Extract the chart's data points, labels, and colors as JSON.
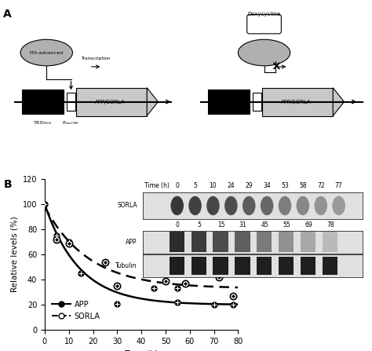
{
  "app_data_x": [
    0,
    5,
    10,
    15,
    30,
    30,
    45,
    55,
    55,
    70,
    78
  ],
  "app_data_y": [
    100,
    75,
    70,
    45,
    35,
    21,
    33,
    33,
    22,
    20,
    20
  ],
  "sorla_data_x": [
    5,
    10,
    25,
    30,
    50,
    58,
    72,
    78
  ],
  "sorla_data_y": [
    72,
    69,
    54,
    35,
    39,
    37,
    42,
    27
  ],
  "app_curve_params": {
    "a": 80,
    "b": 20,
    "k": 0.07
  },
  "sorla_curve_params": {
    "a": 65,
    "b": 33,
    "k": 0.055
  },
  "ylim": [
    0,
    120
  ],
  "xlim": [
    0,
    80
  ],
  "yticks": [
    0,
    20,
    40,
    60,
    80,
    100,
    120
  ],
  "xticks": [
    0,
    10,
    20,
    30,
    40,
    50,
    60,
    70,
    80
  ],
  "ylabel": "Relative levels (%)",
  "xlabel": "Time (h)",
  "legend_app": "APP",
  "legend_sorla": "SORLA",
  "sorla_blot_times": [
    "0",
    "5",
    "10",
    "24",
    "29",
    "34",
    "53",
    "58",
    "72",
    "77"
  ],
  "app_blot_times": [
    "0",
    "5",
    "15",
    "31",
    "45",
    "55",
    "69",
    "78"
  ],
  "inset_label_sorla": "SORLA",
  "inset_label_app": "APP",
  "inset_label_tubulin": "Tubulin",
  "panel_a_label": "A",
  "panel_b_label": "B",
  "bg_color": "#ffffff"
}
